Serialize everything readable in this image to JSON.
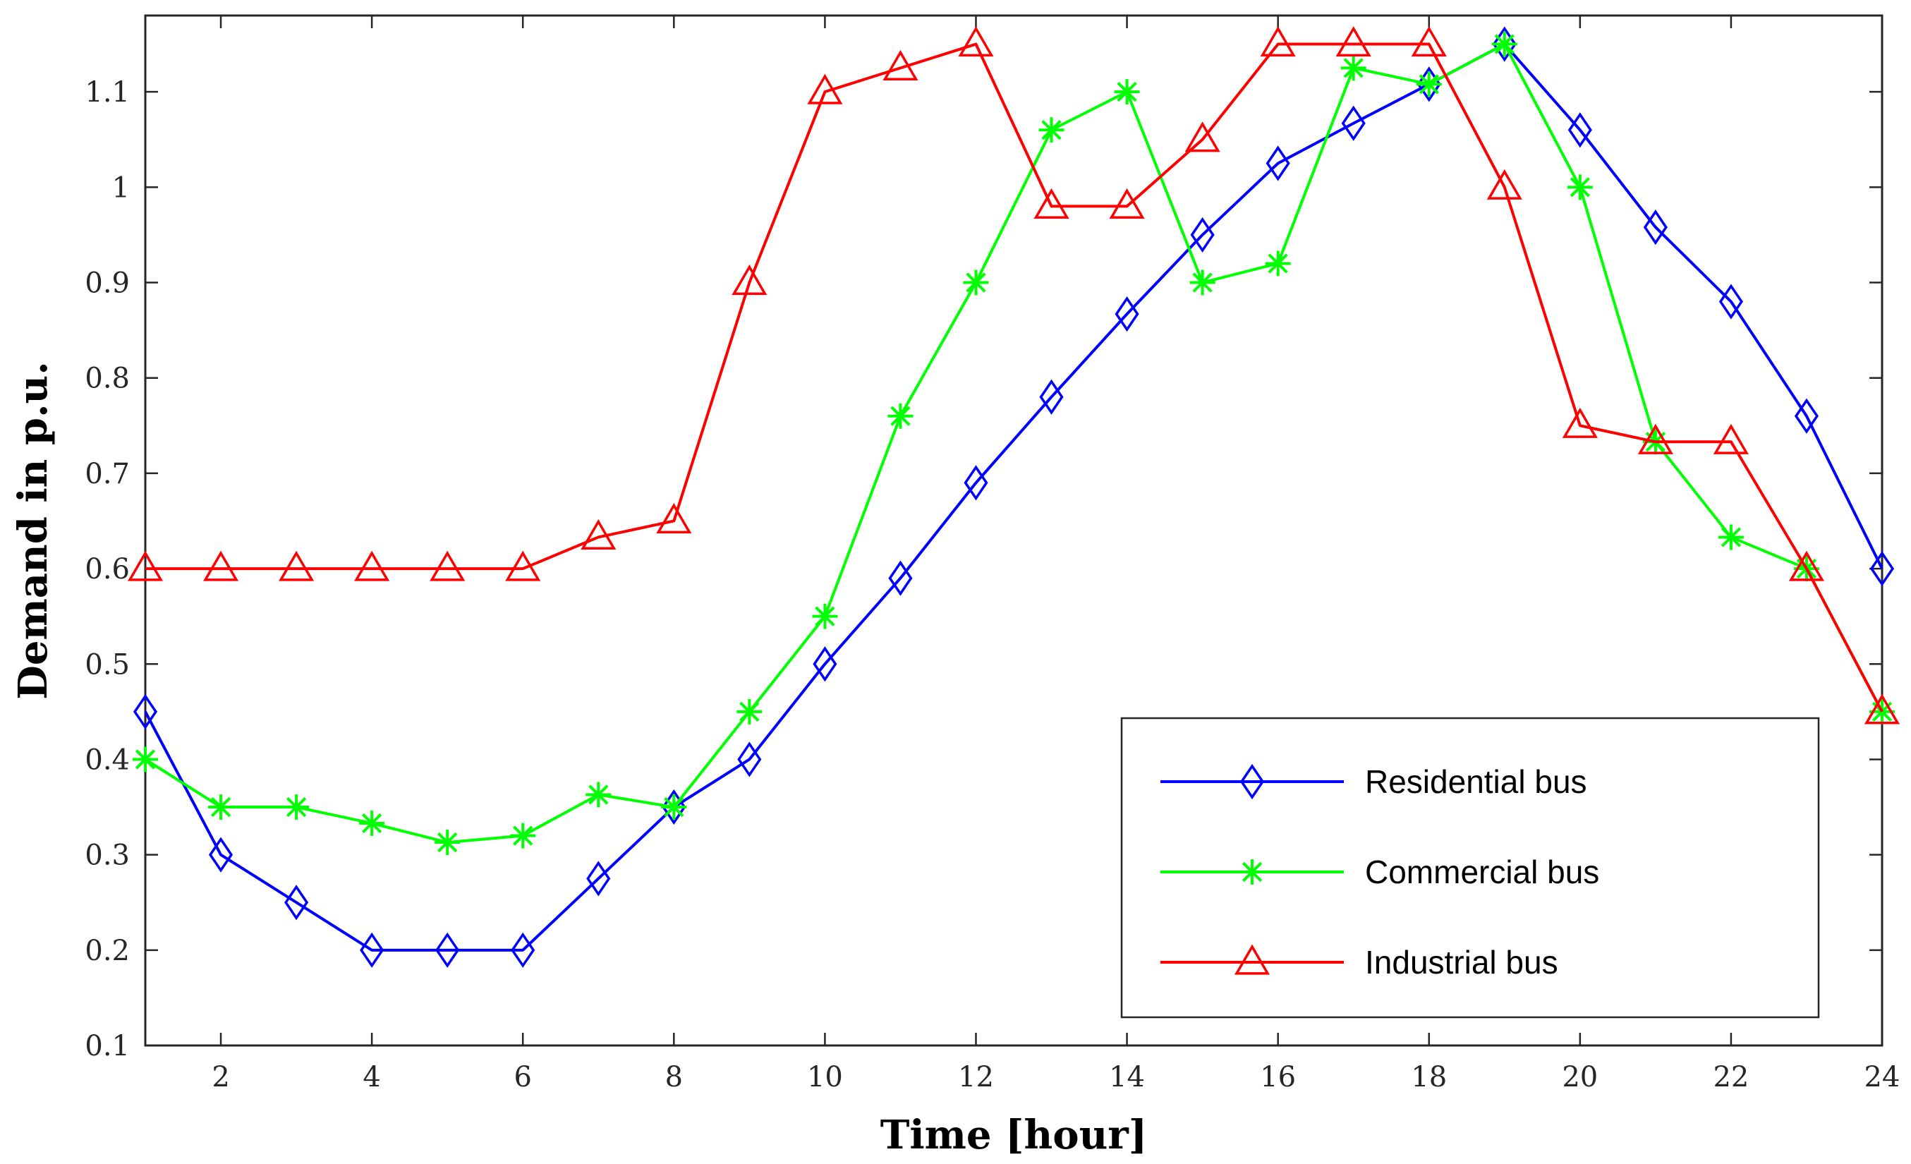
{
  "chart_data": {
    "type": "line",
    "title": "",
    "xlabel": "Time [hour]",
    "ylabel": "Demand in p.u.",
    "xlim": [
      1,
      24
    ],
    "ylim": [
      0.1,
      1.18
    ],
    "xticks": [
      2,
      4,
      6,
      8,
      10,
      12,
      14,
      16,
      18,
      20,
      22,
      24
    ],
    "yticks": [
      0.1,
      0.2,
      0.3,
      0.4,
      0.5,
      0.6,
      0.7,
      0.8,
      0.9,
      1,
      1.1
    ],
    "grid": false,
    "legend_position": "bottom-right",
    "x": [
      1,
      2,
      3,
      4,
      5,
      6,
      7,
      8,
      9,
      10,
      11,
      12,
      13,
      14,
      15,
      16,
      17,
      18,
      19,
      20,
      21,
      22,
      23,
      24
    ],
    "series": [
      {
        "name": "Residential bus",
        "color": "#0000ff",
        "marker": "diamond",
        "values": [
          0.45,
          0.3,
          0.25,
          0.2,
          0.2,
          0.2,
          0.275,
          0.35,
          0.4,
          0.5,
          0.59,
          0.69,
          0.78,
          0.867,
          0.95,
          1.025,
          1.067,
          1.108,
          1.15,
          1.06,
          0.958,
          0.88,
          0.76,
          0.6
        ]
      },
      {
        "name": "Commercial bus",
        "color": "#00ff00",
        "marker": "asterisk",
        "values": [
          0.4,
          0.35,
          0.35,
          0.333,
          0.313,
          0.32,
          0.363,
          0.35,
          0.45,
          0.55,
          0.76,
          0.9,
          1.06,
          1.1,
          0.9,
          0.92,
          1.125,
          1.108,
          1.15,
          1.0,
          0.733,
          0.633,
          0.6,
          0.45
        ]
      },
      {
        "name": "Industrial bus",
        "color": "#ff0000",
        "marker": "triangle",
        "values": [
          0.6,
          0.6,
          0.6,
          0.6,
          0.6,
          0.6,
          0.633,
          0.65,
          0.9,
          1.1,
          1.125,
          1.15,
          0.98,
          0.98,
          1.05,
          1.15,
          1.15,
          1.15,
          1.0,
          0.75,
          0.733,
          0.733,
          0.6,
          0.45
        ]
      }
    ]
  }
}
